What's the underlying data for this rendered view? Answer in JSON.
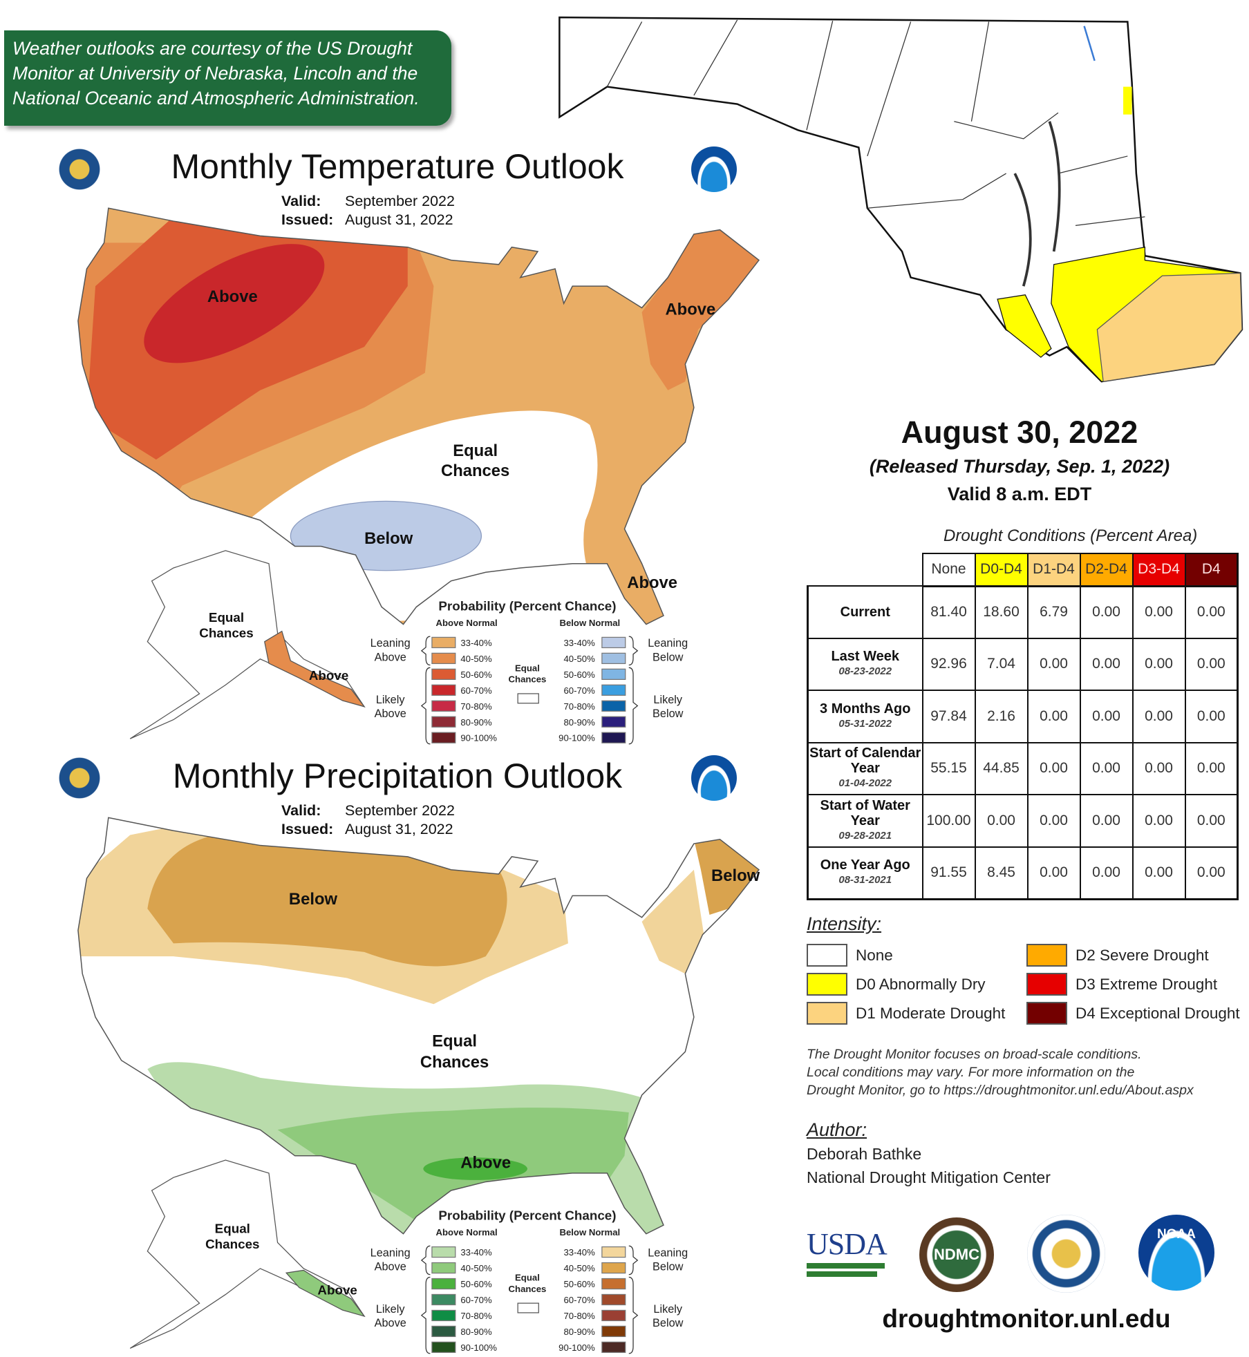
{
  "banner": {
    "lines": [
      "Weather outlooks are courtesy of the US Drought",
      "Monitor at University of Nebraska, Lincoln and the",
      "National Oceanic and Atmospheric Administration."
    ]
  },
  "temperature_outlook": {
    "title": "Monthly Temperature Outlook",
    "valid_label": "Valid:",
    "valid": "September 2022",
    "issued_label": "Issued:",
    "issued": "August 31, 2022",
    "map_labels": {
      "above_west": "Above",
      "above_northeast": "Above",
      "equal1": "Equal",
      "equal2": "Chances",
      "below": "Below",
      "above_florida": "Above",
      "ak_equal1": "Equal",
      "ak_equal2": "Chances",
      "ak_above": "Above"
    },
    "legend": {
      "title": "Probability (Percent Chance)",
      "above_header": "Above Normal",
      "below_header": "Below Normal",
      "leaning_above": [
        "Leaning",
        "Above"
      ],
      "likely_above": [
        "Likely",
        "Above"
      ],
      "leaning_below": [
        "Leaning",
        "Below"
      ],
      "likely_below": [
        "Likely",
        "Below"
      ],
      "equal": [
        "Equal",
        "Chances"
      ],
      "ranges": [
        "33-40%",
        "40-50%",
        "50-60%",
        "60-70%",
        "70-80%",
        "80-90%",
        "90-100%"
      ],
      "above_colors": [
        "#e9ad65",
        "#e58c4c",
        "#dc5b33",
        "#c9272b",
        "#c72a45",
        "#8e2b35",
        "#6a1d22"
      ],
      "below_colors": [
        "#bccbe6",
        "#9fbfe2",
        "#7fb5e3",
        "#3a9ee0",
        "#0a63a8",
        "#2b1f7c",
        "#1e1752"
      ]
    }
  },
  "precipitation_outlook": {
    "title": "Monthly Precipitation Outlook",
    "valid_label": "Valid:",
    "valid": "September 2022",
    "issued_label": "Issued:",
    "issued": "August 31, 2022",
    "map_labels": {
      "below_north": "Below",
      "below_northeast": "Below",
      "equal1": "Equal",
      "equal2": "Chances",
      "above_gulf": "Above",
      "ak_equal1": "Equal",
      "ak_equal2": "Chances",
      "ak_above": "Above"
    },
    "legend": {
      "title": "Probability (Percent Chance)",
      "above_header": "Above Normal",
      "below_header": "Below Normal",
      "leaning_above": [
        "Leaning",
        "Above"
      ],
      "likely_above": [
        "Likely",
        "Above"
      ],
      "leaning_below": [
        "Leaning",
        "Below"
      ],
      "likely_below": [
        "Likely",
        "Below"
      ],
      "equal": [
        "Equal",
        "Chances"
      ],
      "ranges": [
        "33-40%",
        "40-50%",
        "50-60%",
        "60-70%",
        "70-80%",
        "80-90%",
        "90-100%"
      ],
      "above_colors": [
        "#b9dcab",
        "#8fca7c",
        "#4bb13d",
        "#3c8a62",
        "#0f8d45",
        "#2c5a41",
        "#23511e"
      ],
      "below_colors": [
        "#f3d69c",
        "#dea54c",
        "#c66f2f",
        "#a04a2b",
        "#9a3f33",
        "#7f3a07",
        "#4c2a25"
      ]
    }
  },
  "drought": {
    "date": "August 30, 2022",
    "released": "(Released Thursday, Sep. 1, 2022)",
    "valid": "Valid 8 a.m. EDT",
    "caption": "Drought Conditions (Percent Area)",
    "columns": [
      {
        "label": "None",
        "bg": "#ffffff",
        "fg": "#333333"
      },
      {
        "label": "D0-D4",
        "bg": "#ffff00",
        "fg": "#333333"
      },
      {
        "label": "D1-D4",
        "bg": "#fcd37f",
        "fg": "#333333"
      },
      {
        "label": "D2-D4",
        "bg": "#ffaa00",
        "fg": "#333333"
      },
      {
        "label": "D3-D4",
        "bg": "#e60000",
        "fg": "#ffe0e0"
      },
      {
        "label": "D4",
        "bg": "#730000",
        "fg": "#ffe0e0"
      }
    ],
    "rows": [
      {
        "label": "Current",
        "date": "",
        "values": [
          "81.40",
          "18.60",
          "6.79",
          "0.00",
          "0.00",
          "0.00"
        ]
      },
      {
        "label": "Last Week",
        "date": "08-23-2022",
        "values": [
          "92.96",
          "7.04",
          "0.00",
          "0.00",
          "0.00",
          "0.00"
        ]
      },
      {
        "label": "3 Months Ago",
        "date": "05-31-2022",
        "values": [
          "97.84",
          "2.16",
          "0.00",
          "0.00",
          "0.00",
          "0.00"
        ]
      },
      {
        "label": "Start of Calendar Year",
        "date": "01-04-2022",
        "values": [
          "55.15",
          "44.85",
          "0.00",
          "0.00",
          "0.00",
          "0.00"
        ]
      },
      {
        "label": "Start of Water Year",
        "date": "09-28-2021",
        "values": [
          "100.00",
          "0.00",
          "0.00",
          "0.00",
          "0.00",
          "0.00"
        ]
      },
      {
        "label": "One Year Ago",
        "date": "08-31-2021",
        "values": [
          "91.55",
          "8.45",
          "0.00",
          "0.00",
          "0.00",
          "0.00"
        ]
      }
    ],
    "intensity_title": "Intensity:",
    "intensity": [
      {
        "label": "None",
        "color": "#ffffff"
      },
      {
        "label": "D0 Abnormally Dry",
        "color": "#ffff00"
      },
      {
        "label": "D1 Moderate Drought",
        "color": "#fcd37f"
      },
      {
        "label": "D2 Severe Drought",
        "color": "#ffaa00"
      },
      {
        "label": "D3 Extreme Drought",
        "color": "#e60000"
      },
      {
        "label": "D4 Exceptional Drought",
        "color": "#730000"
      }
    ],
    "disclaimer": [
      "The Drought Monitor focuses on broad-scale conditions.",
      "Local conditions may vary. For more information on the",
      "Drought Monitor, go to https://droughtmonitor.unl.edu/About.aspx"
    ],
    "author_title": "Author:",
    "author_name": "Deborah Bathke",
    "author_org": "National Drought Mitigation Center",
    "logos": {
      "usda": "USDA",
      "ndmc": "NDMC",
      "noaa": "NOAA"
    },
    "url": "droughtmonitor.unl.edu"
  }
}
